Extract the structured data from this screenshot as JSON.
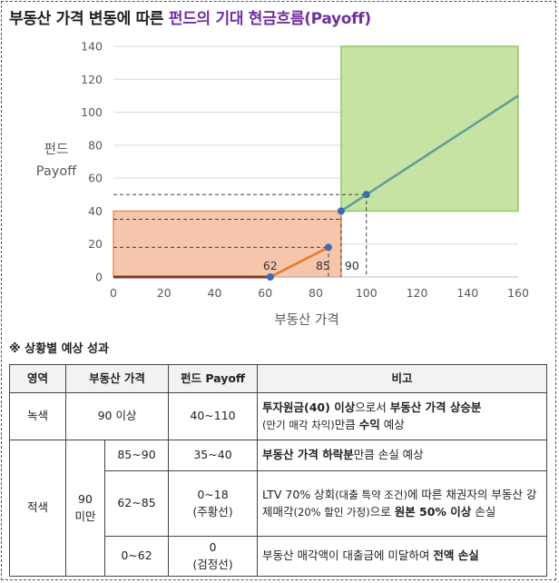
{
  "title": {
    "part1": "부동산 가격 변동에 따른 ",
    "part2": "펀드의 기대 현금흐름(Payoff)"
  },
  "colors": {
    "green_zone": "#c5e29f",
    "green_border": "#8cc665",
    "red_zone": "#f5c4a8",
    "red_border": "#e88a55",
    "line_teal": "#5f9d96",
    "line_orange": "#e87828",
    "line_dark": "#7a3b1f",
    "point": "#3b6bb3",
    "purple_title": "#7030a0"
  },
  "chart_data": {
    "type": "line",
    "xlabel": "부동산 가격",
    "ylabel": [
      "펀드",
      "Payoff"
    ],
    "xlim": [
      0,
      160
    ],
    "ylim": [
      0,
      140
    ],
    "x_ticks": [
      "0",
      "20",
      "40",
      "60",
      "80",
      "100",
      "120",
      "140",
      "160"
    ],
    "y_ticks": [
      "0",
      "20",
      "40",
      "60",
      "80",
      "100",
      "120",
      "140"
    ],
    "grid": "horizontal",
    "series": [
      {
        "segment": "zero-loss",
        "color": "#7a3b1f",
        "points": [
          [
            0,
            0
          ],
          [
            62,
            0
          ]
        ]
      },
      {
        "segment": "recovery",
        "color": "#e87828",
        "points": [
          [
            62,
            0
          ],
          [
            85,
            18
          ]
        ]
      },
      {
        "segment": "gain",
        "color": "#5f9d96",
        "points": [
          [
            90,
            40
          ],
          [
            160,
            110
          ]
        ]
      }
    ],
    "markers": [
      {
        "x": 62,
        "y": 0
      },
      {
        "x": 85,
        "y": 18
      },
      {
        "x": 90,
        "y": 40
      },
      {
        "x": 100,
        "y": 50
      }
    ],
    "zones": [
      {
        "name": "green",
        "x": [
          90,
          160
        ],
        "y": [
          40,
          140
        ]
      },
      {
        "name": "red",
        "x": [
          0,
          90
        ],
        "y": [
          0,
          40
        ]
      }
    ],
    "dashed_lines": [
      {
        "from": [
          0,
          50
        ],
        "to": [
          100,
          50
        ]
      },
      {
        "from": [
          100,
          50
        ],
        "to": [
          100,
          0
        ]
      },
      {
        "from": [
          0,
          35
        ],
        "to": [
          90,
          35
        ]
      },
      {
        "from": [
          0,
          18
        ],
        "to": [
          85,
          18
        ]
      },
      {
        "from": [
          85,
          18
        ],
        "to": [
          85,
          0
        ]
      },
      {
        "from": [
          90,
          40
        ],
        "to": [
          90,
          0
        ]
      }
    ],
    "annotations": [
      {
        "text": "62",
        "x": 62
      },
      {
        "text": "85",
        "x": 85
      },
      {
        "text": "90",
        "x": 90
      }
    ]
  },
  "note": "※ 상황별 예상 성과",
  "table": {
    "headers": {
      "zone": "영역",
      "price": "부동산 가격",
      "payoff": "펀드 Payoff",
      "remark": "비고"
    },
    "green": {
      "zone": "녹색",
      "price": "90 이상",
      "payoff": "40~110",
      "remark_bold1": "투자원금(40) 이상",
      "remark_text1": "으로서 ",
      "remark_bold2": "부동산 가격 상승분",
      "remark_small": "(만기 매각 차익)",
      "remark_text2": "만큼 ",
      "remark_bold3": "수익",
      "remark_text3": " 예상"
    },
    "red": {
      "zone": "적색",
      "group_line1": "90",
      "group_line2": "미만",
      "rows": [
        {
          "price": "85~90",
          "payoff": "35~40",
          "remark_bold1": "부동산 가격 하락분",
          "remark_text1": "만큼 손실 예상"
        },
        {
          "price": "62~85",
          "payoff_line1": "0~18",
          "payoff_line2": "(주황선)",
          "remark_text1": "LTV 70% 상회",
          "remark_small": "(대출 특약 조건)",
          "remark_text2": "에 따른 채권자의 부동산 강제매각",
          "remark_small2": "(20% 할인 가정)",
          "remark_text3": "으로 ",
          "remark_bold1": "원본 50% 이상",
          "remark_text4": " 손실"
        },
        {
          "price": "0~62",
          "payoff_line1": "0",
          "payoff_line2": "(검정선)",
          "remark_text1": "부동산 매각액이 대출금에 미달하여 ",
          "remark_bold1": "전액 손실"
        }
      ]
    }
  }
}
